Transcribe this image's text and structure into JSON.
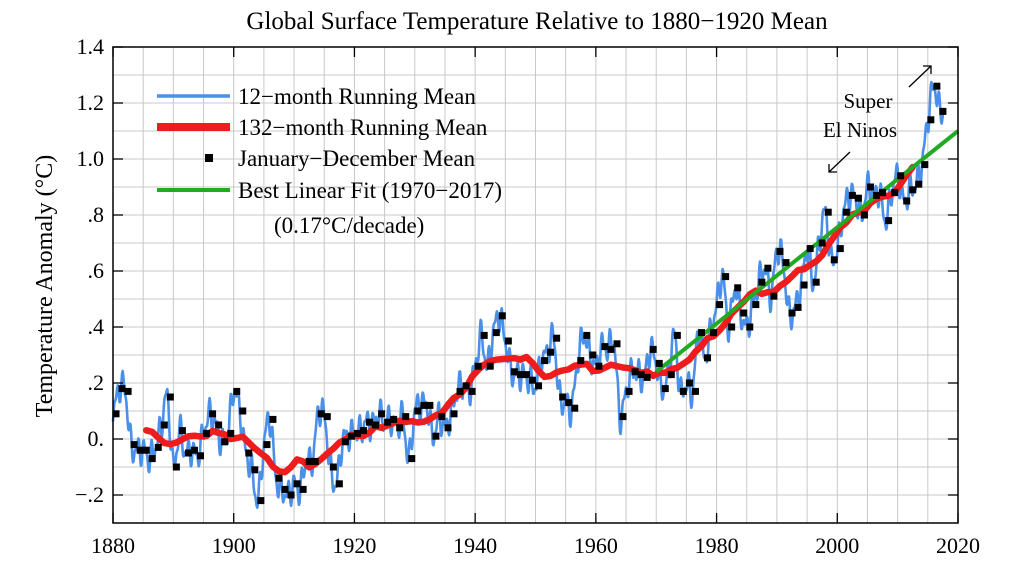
{
  "chart_data": {
    "type": "line",
    "title": "Global Surface Temperature Relative to 1880−1920 Mean",
    "xlabel": "",
    "ylabel": "Temperature Anomaly (°C)",
    "xlim": [
      1880,
      2020
    ],
    "ylim": [
      -0.3,
      1.4
    ],
    "x_ticks": [
      1880,
      1900,
      1920,
      1940,
      1960,
      1980,
      2000,
      2020
    ],
    "x_tick_labels": [
      "1880",
      "1900",
      "1920",
      "1940",
      "1960",
      "1980",
      "2000",
      "2020"
    ],
    "y_ticks": [
      -0.2,
      0.0,
      0.2,
      0.4,
      0.6,
      0.8,
      1.0,
      1.2,
      1.4
    ],
    "y_tick_labels": [
      "−.2",
      "0.",
      ".2",
      ".4",
      ".6",
      ".8",
      "1.0",
      "1.2",
      "1.4"
    ],
    "grid": true,
    "legend_position": "top-left",
    "legend": [
      {
        "label": "12−month Running Mean",
        "kind": "line",
        "color": "#4a90e8"
      },
      {
        "label": "132−month Running Mean",
        "kind": "thick-line",
        "color": "#ee1c1c"
      },
      {
        "label": "January−December Mean",
        "kind": "marker",
        "color": "#000000"
      },
      {
        "label": "Best Linear Fit (1970−2017)",
        "kind": "line",
        "color": "#22aa22"
      }
    ],
    "legend_note": "(0.17°C/decade)",
    "annotation": {
      "line1": "Super",
      "line2": "El Ninos"
    },
    "series": [
      {
        "name": "January−December Mean",
        "kind": "points",
        "color": "#000000",
        "x": [
          1880,
          1881,
          1882,
          1883,
          1884,
          1885,
          1886,
          1887,
          1888,
          1889,
          1890,
          1891,
          1892,
          1893,
          1894,
          1895,
          1896,
          1897,
          1898,
          1899,
          1900,
          1901,
          1902,
          1903,
          1904,
          1905,
          1906,
          1907,
          1908,
          1909,
          1910,
          1911,
          1912,
          1913,
          1914,
          1915,
          1916,
          1917,
          1918,
          1919,
          1920,
          1921,
          1922,
          1923,
          1924,
          1925,
          1926,
          1927,
          1928,
          1929,
          1930,
          1931,
          1932,
          1933,
          1934,
          1935,
          1936,
          1937,
          1938,
          1939,
          1940,
          1941,
          1942,
          1943,
          1944,
          1945,
          1946,
          1947,
          1948,
          1949,
          1950,
          1951,
          1952,
          1953,
          1954,
          1955,
          1956,
          1957,
          1958,
          1959,
          1960,
          1961,
          1962,
          1963,
          1964,
          1965,
          1966,
          1967,
          1968,
          1969,
          1970,
          1971,
          1972,
          1973,
          1974,
          1975,
          1976,
          1977,
          1978,
          1979,
          1980,
          1981,
          1982,
          1983,
          1984,
          1985,
          1986,
          1987,
          1988,
          1989,
          1990,
          1991,
          1992,
          1993,
          1994,
          1995,
          1996,
          1997,
          1998,
          1999,
          2000,
          2001,
          2002,
          2003,
          2004,
          2005,
          2006,
          2007,
          2008,
          2009,
          2010,
          2011,
          2012,
          2013,
          2014,
          2015,
          2016,
          2017
        ],
        "y": [
          0.09,
          0.18,
          0.17,
          -0.02,
          -0.04,
          -0.04,
          -0.07,
          -0.03,
          0.05,
          0.15,
          -0.1,
          0.03,
          -0.05,
          -0.04,
          -0.06,
          0.02,
          0.09,
          0.05,
          -0.01,
          0.02,
          0.17,
          0.1,
          -0.05,
          -0.11,
          -0.22,
          -0.02,
          0.07,
          -0.14,
          -0.18,
          -0.2,
          -0.16,
          -0.18,
          -0.08,
          -0.08,
          0.09,
          0.08,
          -0.1,
          -0.16,
          -0.01,
          0.01,
          0.02,
          0.03,
          0.06,
          0.05,
          0.09,
          0.06,
          0.07,
          0.04,
          0.08,
          -0.07,
          0.1,
          0.12,
          0.12,
          0.01,
          0.08,
          0.04,
          0.09,
          0.17,
          0.19,
          0.17,
          0.26,
          0.37,
          0.26,
          0.38,
          0.44,
          0.35,
          0.24,
          0.23,
          0.23,
          0.21,
          0.19,
          0.28,
          0.31,
          0.36,
          0.15,
          0.13,
          0.11,
          0.28,
          0.37,
          0.3,
          0.26,
          0.33,
          0.32,
          0.34,
          0.08,
          0.17,
          0.24,
          0.23,
          0.22,
          0.32,
          0.27,
          0.18,
          0.23,
          0.37,
          0.17,
          0.2,
          0.17,
          0.38,
          0.29,
          0.38,
          0.48,
          0.58,
          0.4,
          0.54,
          0.45,
          0.4,
          0.48,
          0.56,
          0.61,
          0.51,
          0.67,
          0.63,
          0.45,
          0.47,
          0.55,
          0.68,
          0.56,
          0.7,
          0.81,
          0.64,
          0.68,
          0.81,
          0.87,
          0.86,
          0.8,
          0.9,
          0.87,
          0.88,
          0.78,
          0.88,
          0.94,
          0.85,
          0.89,
          0.91,
          0.98,
          1.14,
          1.26,
          1.17
        ]
      },
      {
        "name": "Best Linear Fit (1970−2017)",
        "kind": "line",
        "color": "#22aa22",
        "x": [
          1970,
          2020
        ],
        "y": [
          0.24,
          1.1
        ]
      }
    ]
  }
}
